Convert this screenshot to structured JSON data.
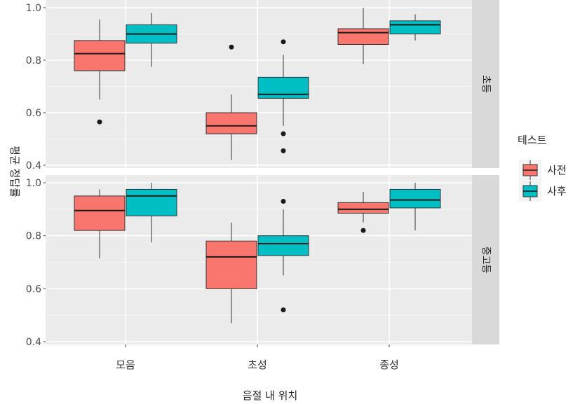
{
  "chart_data": {
    "type": "boxplot",
    "xlabel": "음절 내 위치",
    "ylabel": "평균 정답률",
    "categories": [
      "모음",
      "초성",
      "종성"
    ],
    "legend": {
      "title": "테스트",
      "placement": "right",
      "entries": [
        {
          "name": "사전",
          "color": "#F8766D"
        },
        {
          "name": "사후",
          "color": "#00BFC4"
        }
      ]
    },
    "ylim": [
      0.4,
      1.0
    ],
    "yticks": [
      0.4,
      0.6,
      0.8,
      1.0
    ],
    "ytick_labels": [
      "0.4",
      "0.6",
      "0.8",
      "1.0"
    ],
    "grid": true,
    "panels": [
      {
        "strip_label": "초등",
        "series": [
          {
            "name": "사전",
            "boxes": [
              {
                "category": "모음",
                "min": 0.65,
                "q1": 0.76,
                "median": 0.825,
                "q3": 0.875,
                "max": 0.955,
                "outliers": [
                  0.565
                ]
              },
              {
                "category": "초성",
                "min": 0.42,
                "q1": 0.52,
                "median": 0.55,
                "q3": 0.6,
                "max": 0.67,
                "outliers": [
                  0.85
                ]
              },
              {
                "category": "종성",
                "min": 0.785,
                "q1": 0.86,
                "median": 0.905,
                "q3": 0.92,
                "max": 1.0,
                "outliers": []
              }
            ]
          },
          {
            "name": "사후",
            "boxes": [
              {
                "category": "모음",
                "min": 0.775,
                "q1": 0.865,
                "median": 0.9,
                "q3": 0.935,
                "max": 0.98,
                "outliers": []
              },
              {
                "category": "초성",
                "min": 0.55,
                "q1": 0.655,
                "median": 0.67,
                "q3": 0.735,
                "max": 0.82,
                "outliers": [
                  0.87,
                  0.52,
                  0.455
                ]
              },
              {
                "category": "종성",
                "min": 0.875,
                "q1": 0.9,
                "median": 0.935,
                "q3": 0.95,
                "max": 0.975,
                "outliers": []
              }
            ]
          }
        ]
      },
      {
        "strip_label": "중고등",
        "series": [
          {
            "name": "사전",
            "boxes": [
              {
                "category": "모음",
                "min": 0.715,
                "q1": 0.82,
                "median": 0.895,
                "q3": 0.95,
                "max": 0.975,
                "outliers": []
              },
              {
                "category": "초성",
                "min": 0.47,
                "q1": 0.6,
                "median": 0.72,
                "q3": 0.78,
                "max": 0.85,
                "outliers": []
              },
              {
                "category": "종성",
                "min": 0.85,
                "q1": 0.885,
                "median": 0.9,
                "q3": 0.925,
                "max": 0.965,
                "outliers": [
                  0.82
                ]
              }
            ]
          },
          {
            "name": "사후",
            "boxes": [
              {
                "category": "모음",
                "min": 0.775,
                "q1": 0.875,
                "median": 0.95,
                "q3": 0.975,
                "max": 1.0,
                "outliers": []
              },
              {
                "category": "초성",
                "min": 0.65,
                "q1": 0.725,
                "median": 0.77,
                "q3": 0.8,
                "max": 0.9,
                "outliers": [
                  0.93,
                  0.52
                ]
              },
              {
                "category": "종성",
                "min": 0.82,
                "q1": 0.905,
                "median": 0.935,
                "q3": 0.975,
                "max": 1.0,
                "outliers": []
              }
            ]
          }
        ]
      }
    ]
  }
}
